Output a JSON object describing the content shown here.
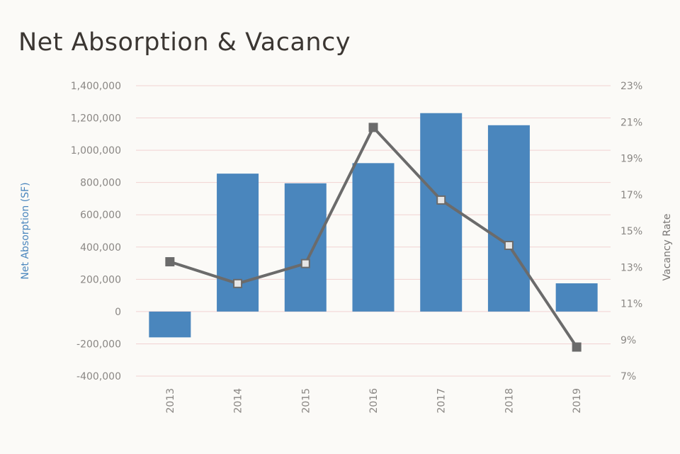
{
  "chart_data": {
    "type": "bar",
    "title": "Net Absorption & Vacancy",
    "categories": [
      "2013",
      "2014",
      "2015",
      "2016",
      "2017",
      "2018",
      "2019"
    ],
    "series": [
      {
        "name": "Net Absorption (SF)",
        "type": "bar",
        "axis": "left",
        "color": "#4a86bd",
        "values": [
          -160000,
          855000,
          795000,
          920000,
          1230000,
          1155000,
          175000
        ]
      },
      {
        "name": "Vacancy Rate",
        "type": "line",
        "axis": "right",
        "color": "#6b6b6b",
        "values": [
          13.3,
          12.1,
          13.2,
          20.7,
          16.7,
          14.2,
          8.6
        ]
      }
    ],
    "ylabel": "Net Absorption  (SF)",
    "y2label": "Vacancy Rate",
    "ylim": [
      -400000,
      1400000
    ],
    "y2lim": [
      7,
      23
    ],
    "yticks": [
      "1,400,000",
      "1,200,000",
      "1,000,000",
      "800,000",
      "600,000",
      "400,000",
      "200,000",
      "0",
      "-200,000",
      "-400,000"
    ],
    "y2ticks": [
      "23%",
      "21%",
      "19%",
      "17%",
      "15%",
      "13%",
      "11%",
      "9%",
      "7%"
    ],
    "grid": true,
    "legend": "none"
  }
}
